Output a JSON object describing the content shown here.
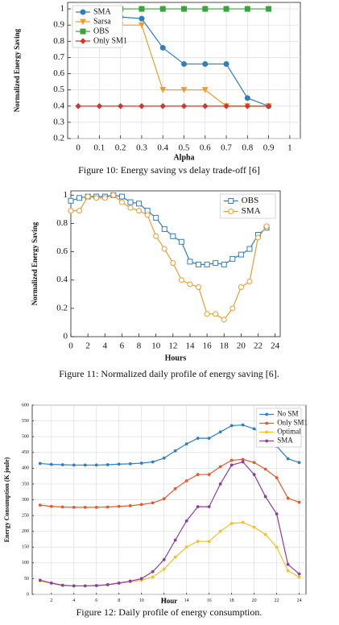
{
  "chart_data": [
    {
      "type": "line",
      "caption": "Figure 10: Energy saving vs delay trade-off [6]",
      "x_label": "Alpha",
      "y_label": "Normalized Energy Saving",
      "x": [
        0,
        0.1,
        0.2,
        0.3,
        0.4,
        0.5,
        0.6,
        0.7,
        0.8,
        0.9
      ],
      "xlim": [
        -0.05,
        1.05
      ],
      "xticks": [
        0,
        0.1,
        0.2,
        0.3,
        0.4,
        0.5,
        0.6,
        0.7,
        0.8,
        0.9,
        1
      ],
      "ylim": [
        0.2,
        1.04
      ],
      "yticks": [
        0.2,
        0.3,
        0.4,
        0.5,
        0.6,
        0.7,
        0.8,
        0.9,
        1
      ],
      "grid": true,
      "legend": "upper left",
      "hollow_markers": false,
      "series": [
        {
          "name": "SMA",
          "color": "#2f7ebf",
          "marker": "circle",
          "values": [
            1,
            1,
            0.95,
            0.94,
            0.76,
            0.66,
            0.66,
            0.66,
            0.45,
            0.4
          ]
        },
        {
          "name": "Sarsa",
          "color": "#f39a2c",
          "marker": "triangle",
          "values": [
            1,
            0.99,
            0.9,
            0.9,
            0.5,
            0.5,
            0.5,
            0.4,
            0.4,
            0.4
          ]
        },
        {
          "name": "OBS",
          "color": "#3aa33a",
          "marker": "square",
          "values": [
            1,
            1,
            1,
            1,
            1,
            1,
            1,
            1,
            1,
            1
          ]
        },
        {
          "name": "Only SM1",
          "color": "#d8322f",
          "marker": "diamond",
          "values": [
            0.4,
            0.4,
            0.4,
            0.4,
            0.4,
            0.4,
            0.4,
            0.4,
            0.4,
            0.4
          ]
        }
      ]
    },
    {
      "type": "line",
      "caption": "Figure 11: Normalized daily profile of energy saving [6].",
      "x_label": "Hours",
      "y_label": "Normalized Energy Saving",
      "x": [
        0,
        1,
        2,
        3,
        4,
        5,
        6,
        7,
        8,
        9,
        10,
        11,
        12,
        13,
        14,
        15,
        16,
        17,
        18,
        19,
        20,
        21,
        22,
        23
      ],
      "xlim": [
        0,
        24.6
      ],
      "xticks": [
        0,
        2,
        4,
        6,
        8,
        10,
        12,
        14,
        16,
        18,
        20,
        22,
        24
      ],
      "ylim": [
        0,
        1.03
      ],
      "yticks": [
        0,
        0.2,
        0.4,
        0.6,
        0.8,
        1
      ],
      "grid": false,
      "legend": "upper right",
      "hollow_markers": true,
      "series": [
        {
          "name": "OBS",
          "color": "#2f7ebf",
          "marker": "square",
          "values": [
            0.96,
            0.98,
            0.99,
            0.99,
            0.99,
            1,
            0.99,
            0.95,
            0.94,
            0.89,
            0.84,
            0.76,
            0.71,
            0.67,
            0.53,
            0.51,
            0.51,
            0.52,
            0.51,
            0.55,
            0.58,
            0.62,
            0.72,
            0.77
          ]
        },
        {
          "name": "SMA",
          "color": "#f39a2c",
          "marker": "circle",
          "values": [
            0.89,
            0.89,
            0.99,
            0.98,
            0.98,
            1,
            0.95,
            0.91,
            0.89,
            0.86,
            0.71,
            0.62,
            0.52,
            0.4,
            0.37,
            0.35,
            0.16,
            0.16,
            0.12,
            0.2,
            0.35,
            0.39,
            0.7,
            0.78
          ]
        }
      ]
    },
    {
      "type": "line",
      "caption": "Figure 12: Daily profile of energy consumption.",
      "x_label": "Hour",
      "y_label": "Energy Consumption (K joule)",
      "x": [
        1,
        2,
        3,
        4,
        5,
        6,
        7,
        8,
        9,
        10,
        11,
        12,
        13,
        14,
        15,
        16,
        17,
        18,
        19,
        20,
        21,
        22,
        23,
        24
      ],
      "xlim": [
        0.3,
        24.6
      ],
      "xticks": [
        2,
        4,
        6,
        8,
        10,
        12,
        14,
        16,
        18,
        20,
        22,
        24
      ],
      "ylim": [
        0,
        600
      ],
      "yticks": [
        0,
        50,
        100,
        150,
        200,
        250,
        300,
        350,
        400,
        450,
        500,
        550,
        600
      ],
      "grid": true,
      "legend": "upper right",
      "hollow_markers": false,
      "series": [
        {
          "name": "No SM",
          "color": "#2e7fc5",
          "marker": "dot",
          "values": [
            415,
            412,
            411,
            410,
            410,
            410,
            411,
            413,
            414,
            416,
            420,
            432,
            455,
            477,
            495,
            495,
            515,
            535,
            537,
            525,
            500,
            470,
            430,
            418
          ]
        },
        {
          "name": "Only SM1",
          "color": "#e8582a",
          "marker": "dot",
          "values": [
            283,
            279,
            277,
            276,
            276,
            276,
            277,
            279,
            281,
            285,
            290,
            303,
            335,
            360,
            380,
            380,
            405,
            425,
            428,
            418,
            397,
            370,
            305,
            292
          ]
        },
        {
          "name": "Optimal",
          "color": "#f5c02a",
          "marker": "dot",
          "values": [
            43,
            35,
            28,
            27,
            27,
            27,
            30,
            35,
            40,
            45,
            55,
            80,
            118,
            150,
            168,
            168,
            200,
            225,
            228,
            213,
            190,
            150,
            75,
            55
          ]
        },
        {
          "name": "SMA",
          "color": "#8c3d9e",
          "marker": "dot",
          "values": [
            45,
            36,
            29,
            27,
            27,
            28,
            31,
            36,
            42,
            50,
            72,
            110,
            172,
            233,
            278,
            278,
            350,
            410,
            420,
            380,
            310,
            255,
            95,
            65
          ]
        }
      ]
    }
  ]
}
